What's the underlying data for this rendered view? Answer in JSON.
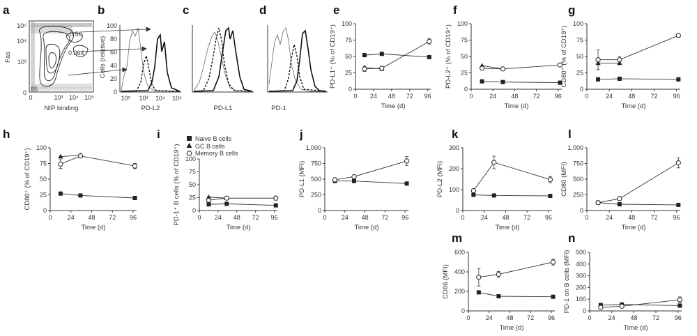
{
  "legend": {
    "entries": [
      {
        "label": "Naive B cells",
        "marker": "square-filled"
      },
      {
        "label": "GC B cells",
        "marker": "triangle-filled"
      },
      {
        "label": "Memory B cells",
        "marker": "circle-open"
      }
    ]
  },
  "chart_data": [
    {
      "panel": "a",
      "type": "contour",
      "xlabel": "NIP binding",
      "ylabel": "Fas",
      "xticks": [
        "0",
        "10³",
        "10⁴",
        "10⁵"
      ],
      "yticks": [
        "0",
        "10³",
        "10⁴",
        "10⁵"
      ],
      "gate_labels": [
        "0.56",
        "0.064"
      ],
      "corner_label": "65"
    },
    {
      "panel": "b",
      "type": "histogram",
      "xlabel": "PD-L2",
      "ylabel": "Cells (relative)",
      "xticks": [
        "10²",
        "10³",
        "10⁴",
        "10⁵"
      ],
      "yticks": [
        "0",
        "20",
        "40",
        "60",
        "80",
        "100"
      ],
      "ylim": [
        0,
        100
      ]
    },
    {
      "panel": "c",
      "type": "histogram",
      "xlabel": "PD-L1"
    },
    {
      "panel": "d",
      "type": "histogram",
      "xlabel": "PD-1"
    },
    {
      "panel": "e",
      "type": "line",
      "xlabel": "Time (d)",
      "ylabel": "PD-L1⁺ (% of CD19⁺)",
      "xlim": [
        0,
        100
      ],
      "xticks": [
        0,
        24,
        48,
        72,
        96
      ],
      "ylim": [
        0,
        100
      ],
      "yticks": [
        0,
        25,
        50,
        75,
        100
      ],
      "yticklabels": [
        "0",
        "25",
        "50",
        "75",
        "100"
      ],
      "series": [
        {
          "marker": "square-filled",
          "x": [
            12,
            35,
            98
          ],
          "y": [
            52,
            54,
            49
          ]
        },
        {
          "marker": "triangle-filled",
          "x": [
            12,
            35
          ],
          "y": [
            33,
            31
          ]
        },
        {
          "marker": "circle-open",
          "x": [
            12,
            35,
            98
          ],
          "y": [
            31,
            32,
            73
          ],
          "err": [
            4,
            3,
            4
          ]
        }
      ]
    },
    {
      "panel": "f",
      "type": "line",
      "xlabel": "Time (d)",
      "ylabel": "PD-L2⁺ (% of CD19⁺)",
      "xlim": [
        0,
        100
      ],
      "xticks": [
        0,
        24,
        48,
        72,
        96
      ],
      "ylim": [
        0,
        100
      ],
      "yticks": [
        0,
        25,
        50,
        75,
        100
      ],
      "yticklabels": [
        "0",
        "25",
        "50",
        "75",
        "100"
      ],
      "series": [
        {
          "marker": "square-filled",
          "x": [
            12,
            35,
            98
          ],
          "y": [
            12,
            11,
            10
          ]
        },
        {
          "marker": "triangle-filled",
          "x": [
            12,
            35
          ],
          "y": [
            36,
            31
          ]
        },
        {
          "marker": "circle-open",
          "x": [
            12,
            35,
            98
          ],
          "y": [
            32,
            31,
            37
          ],
          "err": [
            2,
            2,
            2
          ]
        }
      ]
    },
    {
      "panel": "g",
      "type": "line",
      "xlabel": "Time (d)",
      "ylabel": "CD80⁺ (% of CD19⁺)",
      "xlim": [
        0,
        100
      ],
      "xticks": [
        0,
        24,
        48,
        72,
        96
      ],
      "ylim": [
        0,
        100
      ],
      "yticks": [
        0,
        25,
        50,
        75,
        100
      ],
      "yticklabels": [
        "0",
        "25",
        "50",
        "75",
        "100"
      ],
      "series": [
        {
          "marker": "square-filled",
          "x": [
            12,
            35,
            98
          ],
          "y": [
            15,
            16,
            15
          ]
        },
        {
          "marker": "triangle-filled",
          "x": [
            12,
            35
          ],
          "y": [
            40,
            40
          ]
        },
        {
          "marker": "circle-open",
          "x": [
            12,
            35,
            98
          ],
          "y": [
            45,
            45,
            82
          ],
          "err": [
            15,
            5,
            3
          ]
        }
      ]
    },
    {
      "panel": "h",
      "type": "line",
      "xlabel": "Time (d)",
      "ylabel": "CD86⁺ (% of CD19⁺)",
      "xlim": [
        0,
        100
      ],
      "xticks": [
        0,
        24,
        48,
        72,
        96
      ],
      "ylim": [
        0,
        100
      ],
      "yticks": [
        0,
        25,
        50,
        75,
        100
      ],
      "yticklabels": [
        "0",
        "25",
        "50",
        "75",
        "100"
      ],
      "series": [
        {
          "marker": "square-filled",
          "x": [
            12,
            35,
            98
          ],
          "y": [
            27,
            24,
            20
          ]
        },
        {
          "marker": "triangle-filled",
          "x": [
            12,
            35
          ],
          "y": [
            86,
            88
          ]
        },
        {
          "marker": "circle-open",
          "x": [
            12,
            35,
            98
          ],
          "y": [
            74,
            87,
            71
          ],
          "err": [
            7,
            3,
            4
          ]
        }
      ]
    },
    {
      "panel": "i",
      "type": "line",
      "xlabel": "Time (d)",
      "ylabel": "PD-1⁺ B cells (% of CD19⁺)",
      "xlim": [
        0,
        100
      ],
      "xticks": [
        0,
        24,
        48,
        72,
        96
      ],
      "ylim": [
        0,
        100
      ],
      "yticks": [
        0,
        25,
        50,
        75,
        100
      ],
      "yticklabels": [
        "0",
        "25",
        "50",
        "75",
        "100"
      ],
      "series": [
        {
          "marker": "square-filled",
          "x": [
            12,
            35,
            98
          ],
          "y": [
            12,
            13,
            10
          ]
        },
        {
          "marker": "triangle-filled",
          "x": [
            12,
            35
          ],
          "y": [
            26,
            24
          ]
        },
        {
          "marker": "circle-open",
          "x": [
            12,
            35,
            98
          ],
          "y": [
            20,
            24,
            24
          ],
          "err": [
            7,
            3,
            4
          ]
        }
      ]
    },
    {
      "panel": "j",
      "type": "line",
      "xlabel": "Time (d)",
      "ylabel": "PD-L1 (MFI)",
      "xlim": [
        0,
        100
      ],
      "xticks": [
        0,
        24,
        48,
        72,
        96
      ],
      "ylim": [
        0,
        1000
      ],
      "yticks": [
        0,
        250,
        500,
        750,
        1000
      ],
      "yticklabels": [
        "0",
        "250",
        "500",
        "750",
        "1,000"
      ],
      "series": [
        {
          "marker": "square-filled",
          "x": [
            12,
            35,
            98
          ],
          "y": [
            470,
            470,
            430
          ]
        },
        {
          "marker": "circle-open",
          "x": [
            12,
            35,
            98
          ],
          "y": [
            490,
            540,
            790
          ],
          "err": [
            30,
            20,
            70
          ]
        }
      ]
    },
    {
      "panel": "k",
      "type": "line",
      "xlabel": "Time (d)",
      "ylabel": "PD-L2 (MFI)",
      "xlim": [
        0,
        100
      ],
      "xticks": [
        0,
        24,
        48,
        72,
        96
      ],
      "ylim": [
        0,
        300
      ],
      "yticks": [
        0,
        100,
        200,
        300
      ],
      "yticklabels": [
        "0",
        "100",
        "200",
        "300"
      ],
      "series": [
        {
          "marker": "square-filled",
          "x": [
            12,
            35,
            98
          ],
          "y": [
            75,
            72,
            70
          ]
        },
        {
          "marker": "circle-open",
          "x": [
            12,
            35,
            98
          ],
          "y": [
            95,
            230,
            148
          ],
          "err": [
            8,
            30,
            15
          ]
        }
      ]
    },
    {
      "panel": "l",
      "type": "line",
      "xlabel": "Time (d)",
      "ylabel": "CD80 (MFI)",
      "xlim": [
        0,
        100
      ],
      "xticks": [
        0,
        24,
        48,
        72,
        96
      ],
      "ylim": [
        0,
        1000
      ],
      "yticks": [
        0,
        250,
        500,
        750,
        1000
      ],
      "yticklabels": [
        "0",
        "250",
        "500",
        "750",
        "1,000"
      ],
      "series": [
        {
          "marker": "square-filled",
          "x": [
            12,
            35,
            98
          ],
          "y": [
            125,
            100,
            90
          ]
        },
        {
          "marker": "circle-open",
          "x": [
            12,
            35,
            98
          ],
          "y": [
            125,
            190,
            760
          ],
          "err": [
            20,
            30,
            80
          ]
        }
      ]
    },
    {
      "panel": "m",
      "type": "line",
      "xlabel": "Time (d)",
      "ylabel": "CD86 (MFI)",
      "xlim": [
        0,
        100
      ],
      "xticks": [
        0,
        24,
        48,
        72,
        96
      ],
      "ylim": [
        0,
        600
      ],
      "yticks": [
        0,
        200,
        400,
        600
      ],
      "yticklabels": [
        "0",
        "200",
        "400",
        "600"
      ],
      "series": [
        {
          "marker": "square-filled",
          "x": [
            12,
            35,
            98
          ],
          "y": [
            190,
            150,
            145
          ]
        },
        {
          "marker": "circle-open",
          "x": [
            12,
            35,
            98
          ],
          "y": [
            345,
            375,
            500
          ],
          "err": [
            90,
            30,
            30
          ]
        }
      ]
    },
    {
      "panel": "n",
      "type": "line",
      "xlabel": "Time (d)",
      "ylabel": "PD-1 on B cells (MFI)",
      "xlim": [
        0,
        100
      ],
      "xticks": [
        0,
        24,
        48,
        72,
        96
      ],
      "ylim": [
        0,
        500
      ],
      "yticks": [
        0,
        100,
        200,
        300,
        400,
        500
      ],
      "yticklabels": [
        "0",
        "100",
        "200",
        "300",
        "400",
        "500"
      ],
      "series": [
        {
          "marker": "square-filled",
          "x": [
            12,
            35,
            98
          ],
          "y": [
            50,
            55,
            45
          ]
        },
        {
          "marker": "circle-open",
          "x": [
            12,
            35,
            98
          ],
          "y": [
            30,
            40,
            95
          ],
          "err": [
            10,
            10,
            25
          ]
        }
      ]
    }
  ]
}
